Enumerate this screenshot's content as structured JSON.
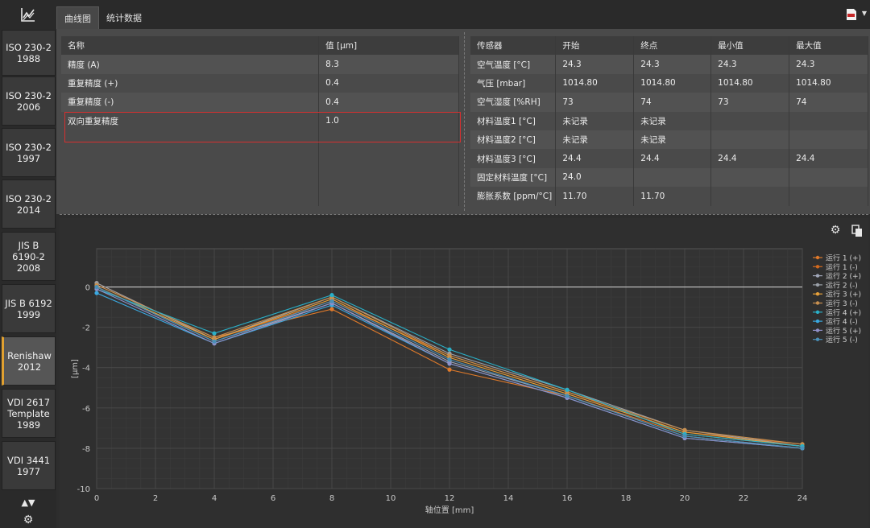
{
  "tabs": [
    "曲线图",
    "统计数据"
  ],
  "sidebar": {
    "items": [
      "ISO 230-2\n1988",
      "ISO 230-2\n2006",
      "ISO 230-2\n1997",
      "ISO 230-2\n2014",
      "JIS B\n6190-2\n2008",
      "JIS B 6192\n1999",
      "Renishaw\n2012",
      "VDI 2617\nTemplate\n1989",
      "VDI 3441\n1977"
    ],
    "active_index": 6,
    "arrows": "▲▼"
  },
  "left_table": {
    "headers": [
      "名称",
      "值 [µm]"
    ],
    "rows": [
      [
        "精度 (A)",
        "8.3"
      ],
      [
        "重复精度 (+)",
        "0.4"
      ],
      [
        "重复精度 (-)",
        "0.4"
      ],
      [
        "双向重复精度",
        "1.0"
      ]
    ]
  },
  "right_table": {
    "headers": [
      "传感器",
      "开始",
      "终点",
      "最小值",
      "最大值"
    ],
    "rows": [
      [
        "空气温度 [°C]",
        "24.3",
        "24.3",
        "24.3",
        "24.3"
      ],
      [
        "气压 [mbar]",
        "1014.80",
        "1014.80",
        "1014.80",
        "1014.80"
      ],
      [
        "空气湿度 [%RH]",
        "73",
        "74",
        "73",
        "74"
      ],
      [
        "材料温度1 [°C]",
        "未记录",
        "未记录",
        "",
        ""
      ],
      [
        "材料温度2 [°C]",
        "未记录",
        "未记录",
        "",
        ""
      ],
      [
        "材料温度3 [°C]",
        "24.4",
        "24.4",
        "24.4",
        "24.4"
      ],
      [
        "固定材料温度 [°C]",
        "24.0",
        "",
        "",
        ""
      ],
      [
        "膨胀系数 [ppm/°C]",
        "11.70",
        "11.70",
        "",
        ""
      ]
    ]
  },
  "chart_data": {
    "type": "line",
    "xlabel": "轴位置 [mm]",
    "ylabel": "[µm]",
    "xlim": [
      0,
      24
    ],
    "ylim": [
      -10,
      1.9
    ],
    "x_ticks": [
      0,
      2,
      4,
      6,
      8,
      10,
      12,
      14,
      16,
      18,
      20,
      22,
      24
    ],
    "y_ticks": [
      0,
      -2,
      -4,
      -6,
      -8,
      -10
    ],
    "grid": true,
    "legend_position": "right",
    "x": [
      0,
      4,
      8,
      12,
      16,
      20,
      24
    ],
    "series": [
      {
        "name": "运行 1 (+)",
        "color": "#e07a2a",
        "values": [
          0.1,
          -2.5,
          -1.1,
          -4.1,
          -5.4,
          -7.3,
          -7.9
        ]
      },
      {
        "name": "运行 1 (-)",
        "color": "#d2691e",
        "values": [
          0.2,
          -2.6,
          -0.7,
          -3.4,
          -5.2,
          -7.2,
          -7.8
        ]
      },
      {
        "name": "运行 2 (+)",
        "color": "#a0a6b8",
        "values": [
          0.0,
          -2.7,
          -0.8,
          -3.7,
          -5.4,
          -7.4,
          -8.0
        ]
      },
      {
        "name": "运行 2 (-)",
        "color": "#9aa0a8",
        "values": [
          0.2,
          -2.6,
          -0.5,
          -3.3,
          -5.1,
          -7.1,
          -7.9
        ]
      },
      {
        "name": "运行 3 (+)",
        "color": "#e6a03a",
        "values": [
          0.0,
          -2.6,
          -0.6,
          -3.5,
          -5.3,
          -7.2,
          -7.9
        ]
      },
      {
        "name": "运行 3 (-)",
        "color": "#c89050",
        "values": [
          0.1,
          -2.5,
          -0.5,
          -3.4,
          -5.2,
          -7.1,
          -7.8
        ]
      },
      {
        "name": "运行 4 (+)",
        "color": "#2ab0c8",
        "values": [
          -0.1,
          -2.3,
          -0.4,
          -3.1,
          -5.1,
          -7.3,
          -7.9
        ]
      },
      {
        "name": "运行 4 (-)",
        "color": "#3aa8e0",
        "values": [
          -0.3,
          -2.8,
          -0.9,
          -3.8,
          -5.5,
          -7.5,
          -8.0
        ]
      },
      {
        "name": "运行 5 (+)",
        "color": "#9090c8",
        "values": [
          -0.1,
          -2.8,
          -0.8,
          -3.8,
          -5.5,
          -7.5,
          -8.0
        ]
      },
      {
        "name": "运行 5 (-)",
        "color": "#4a90b8",
        "values": [
          0.0,
          -2.7,
          -0.7,
          -3.6,
          -5.4,
          -7.4,
          -8.0
        ]
      }
    ]
  }
}
